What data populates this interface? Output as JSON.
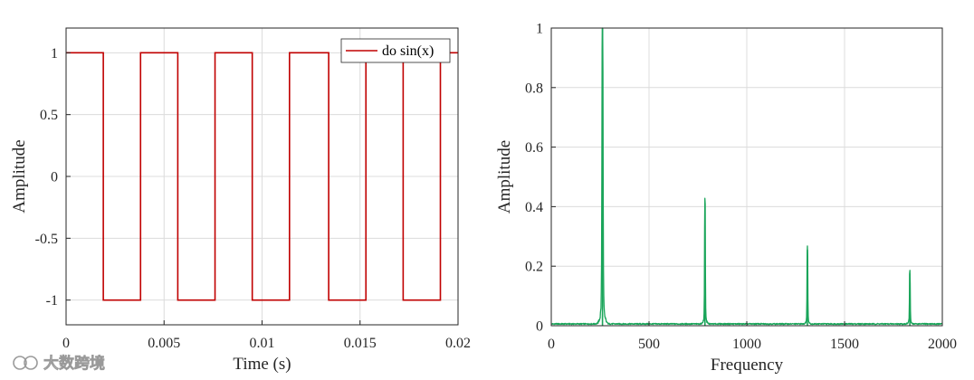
{
  "watermark": {
    "text": "大数跨境"
  },
  "chart_data": [
    {
      "type": "line",
      "xlabel": "Time (s)",
      "ylabel": "Amplitude",
      "xlim": [
        0,
        0.02
      ],
      "ylim": [
        -1.2,
        1.2
      ],
      "xticks": [
        0,
        0.005,
        0.01,
        0.015,
        0.02
      ],
      "xtick_labels": [
        "0",
        "0.005",
        "0.01",
        "0.015",
        "0.02"
      ],
      "yticks": [
        1,
        0.5,
        0,
        -0.5,
        -1
      ],
      "ytick_labels": [
        "1",
        "0.5",
        "0",
        "-0.5",
        "-1"
      ],
      "grid": true,
      "legend": "top-right",
      "series": [
        {
          "name": "do sin(x)",
          "color": "#c00000",
          "x": [
            0,
            0.0019,
            0.0019,
            0.0038,
            0.0038,
            0.0057,
            0.0057,
            0.0076,
            0.0076,
            0.0095,
            0.0095,
            0.0114,
            0.0114,
            0.0134,
            0.0134,
            0.0153,
            0.0153,
            0.0172,
            0.0172,
            0.0191,
            0.0191,
            0.02
          ],
          "y": [
            1,
            1,
            -1,
            -1,
            1,
            1,
            -1,
            -1,
            1,
            1,
            -1,
            -1,
            1,
            1,
            -1,
            -1,
            1,
            1,
            -1,
            -1,
            1,
            1
          ]
        }
      ]
    },
    {
      "type": "line",
      "xlabel": "Frequency",
      "ylabel": "Amplitude",
      "xlim": [
        0,
        2000
      ],
      "ylim": [
        0,
        1
      ],
      "xticks": [
        0,
        500,
        1000,
        1500,
        2000
      ],
      "xtick_labels": [
        "0",
        "500",
        "1000",
        "1500",
        "2000"
      ],
      "yticks": [
        1,
        0.8,
        0.6,
        0.4,
        0.2,
        0
      ],
      "ytick_labels": [
        "1",
        "0.8",
        "0.6",
        "0.4",
        "0.2",
        "0"
      ],
      "grid": true,
      "series": [
        {
          "color": "#1aa55a",
          "peaks": [
            {
              "x": 262,
              "y": 1.0
            },
            {
              "x": 786,
              "y": 0.41
            },
            {
              "x": 1310,
              "y": 0.255
            },
            {
              "x": 1834,
              "y": 0.175
            }
          ]
        }
      ]
    }
  ]
}
